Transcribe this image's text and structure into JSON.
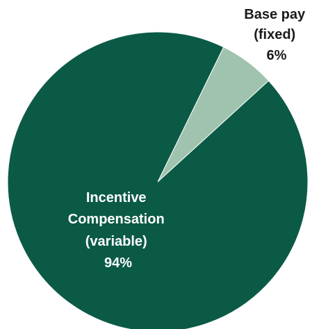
{
  "chart_data": {
    "type": "pie",
    "slices": [
      {
        "label_lines": [
          "Base pay",
          "(fixed)"
        ],
        "value_label": "6%",
        "value": 6,
        "color": "#9fc3ae",
        "label_position": "outside-top-right"
      },
      {
        "label_lines": [
          "Incentive",
          "Compensation",
          "(variable)"
        ],
        "value_label": "94%",
        "value": 94,
        "color": "#0b5a46",
        "label_position": "inside-left"
      }
    ],
    "start_angle_deg": 26,
    "direction": "clockwise",
    "title": "",
    "legend": "none"
  }
}
